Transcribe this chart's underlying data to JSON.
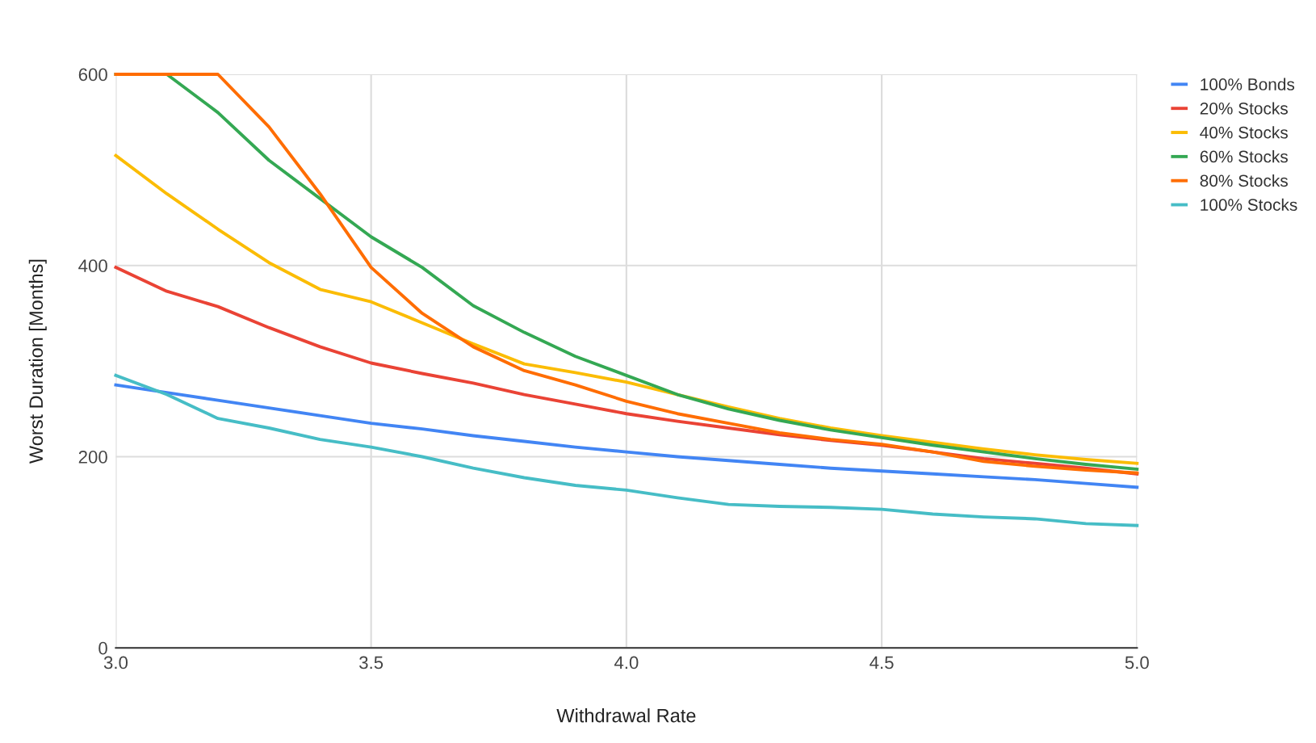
{
  "chart_data": {
    "type": "line",
    "xlabel": "Withdrawal Rate",
    "ylabel": "Worst Duration [Months]",
    "x": [
      3.0,
      3.1,
      3.2,
      3.3,
      3.4,
      3.5,
      3.6,
      3.7,
      3.8,
      3.9,
      4.0,
      4.1,
      4.2,
      4.3,
      4.4,
      4.5,
      4.6,
      4.7,
      4.8,
      4.9,
      5.0
    ],
    "series": [
      {
        "name": "100% Bonds",
        "color": "#4285f4",
        "values": [
          275,
          267,
          259,
          251,
          243,
          235,
          229,
          222,
          216,
          210,
          205,
          200,
          196,
          192,
          188,
          185,
          182,
          179,
          176,
          172,
          168
        ]
      },
      {
        "name": "20% Stocks",
        "color": "#ea4335",
        "values": [
          398,
          373,
          357,
          335,
          315,
          298,
          287,
          277,
          265,
          255,
          245,
          237,
          230,
          223,
          217,
          212,
          205,
          198,
          193,
          188,
          182
        ]
      },
      {
        "name": "40% Stocks",
        "color": "#fbbc04",
        "values": [
          515,
          475,
          438,
          403,
          375,
          362,
          340,
          318,
          297,
          288,
          278,
          265,
          252,
          240,
          230,
          222,
          215,
          208,
          202,
          197,
          193
        ]
      },
      {
        "name": "60% Stocks",
        "color": "#34a853",
        "values": [
          600,
          600,
          560,
          510,
          470,
          430,
          398,
          358,
          330,
          305,
          285,
          265,
          250,
          238,
          228,
          220,
          212,
          205,
          198,
          192,
          187
        ]
      },
      {
        "name": "80% Stocks",
        "color": "#ff6d01",
        "values": [
          600,
          600,
          600,
          545,
          475,
          398,
          350,
          315,
          290,
          275,
          258,
          245,
          235,
          225,
          218,
          213,
          205,
          195,
          190,
          186,
          183
        ]
      },
      {
        "name": "100% Stocks",
        "color": "#46bdc6",
        "values": [
          285,
          265,
          240,
          230,
          218,
          210,
          200,
          188,
          178,
          170,
          165,
          157,
          150,
          148,
          147,
          145,
          140,
          137,
          135,
          130,
          128
        ]
      }
    ],
    "xlim": [
      3.0,
      5.0
    ],
    "xticks": [
      {
        "value": 3.0,
        "label": "3.0"
      },
      3.5,
      {
        "value": 4.0,
        "label": "4.0"
      },
      4.5,
      {
        "value": 5.0,
        "label": "5.0"
      }
    ],
    "ylim": [
      0,
      600
    ],
    "yticks": [
      0,
      200,
      400,
      600
    ],
    "grid": true,
    "legend": "top right",
    "marker": "none",
    "line_style": "solid"
  }
}
